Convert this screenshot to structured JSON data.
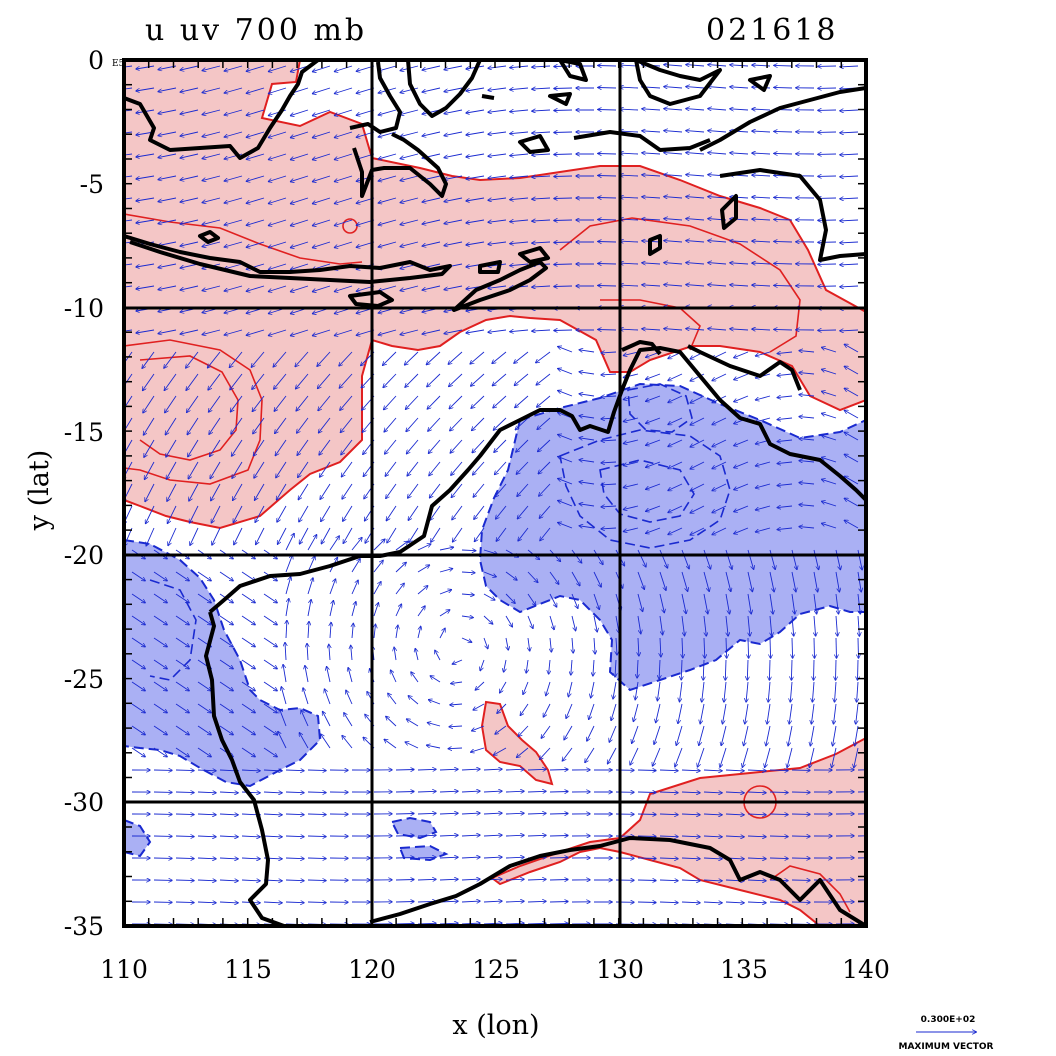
{
  "title_left": "u uv 700 mb",
  "title_right": "021618",
  "corner_label": "E5",
  "xlabel": "x (lon)",
  "ylabel": "y (lat)",
  "x_ticks": [
    "110",
    "115",
    "120",
    "125",
    "130",
    "135",
    "140"
  ],
  "y_ticks": [
    "0",
    "-5",
    "-10",
    "-15",
    "-20",
    "-25",
    "-30",
    "-35"
  ],
  "legend": {
    "value": "0.300E+02",
    "label": "MAXIMUM VECTOR"
  },
  "map": {
    "lon_range": [
      110,
      140
    ],
    "lat_range": [
      -35,
      0
    ],
    "grid_lons": [
      120,
      130
    ],
    "grid_lats": [
      -10,
      -20,
      -30
    ],
    "positive_fill": "#f4c6c6",
    "positive_line": "#e02020",
    "negative_fill": "#aab0f4",
    "negative_line": "#1a2ad0",
    "vector_color": "#1a2ad0",
    "coast_color": "#000000"
  }
}
